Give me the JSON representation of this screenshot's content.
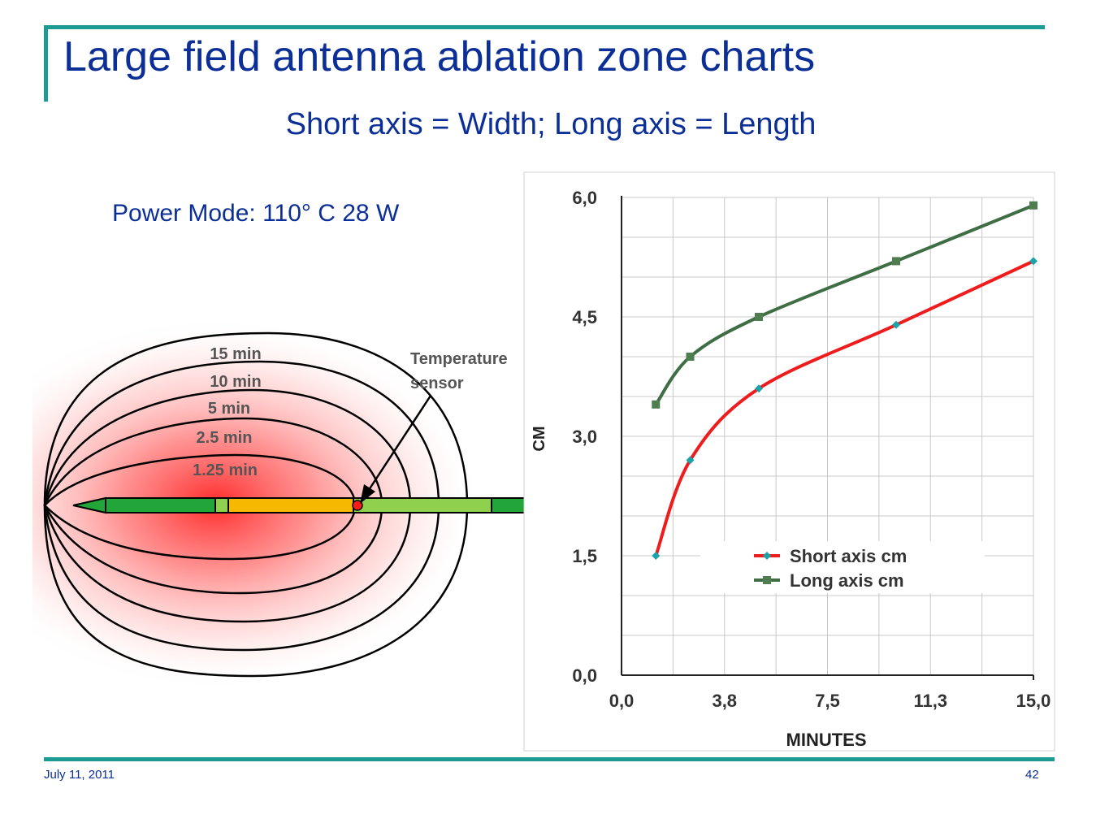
{
  "slide": {
    "title": "Large field antenna ablation zone charts",
    "subtitle": "Short axis = Width; Long axis = Length",
    "power_mode": "Power Mode: 110° C  28 W",
    "footer_date": "July 11, 2011",
    "page_number": "42",
    "accent_color": "#1e9a95",
    "title_color": "#0b2f96"
  },
  "diagram": {
    "zone_labels": [
      "15 min",
      "10 min",
      "5 min",
      "2.5 min",
      "1.25 min"
    ],
    "sensor_label_line1": "Temperature",
    "sensor_label_line2": "sensor"
  },
  "chart_data": {
    "type": "line",
    "title": "",
    "xlabel": "MINUTES",
    "ylabel": "CM",
    "xlim": [
      0,
      15
    ],
    "ylim": [
      0,
      6
    ],
    "x_ticks": [
      "0,0",
      "3,8",
      "7,5",
      "11,3",
      "15,0"
    ],
    "y_ticks": [
      "0,0",
      "1,5",
      "3,0",
      "4,5",
      "6,0"
    ],
    "grid": true,
    "legend_position": "center-right",
    "series": [
      {
        "name": "Short axis cm",
        "color": "#ee1c1c",
        "marker": "diamond",
        "marker_color": "#1aa3a8",
        "x": [
          1.25,
          2.5,
          5,
          10,
          15
        ],
        "y": [
          1.5,
          2.7,
          3.6,
          4.4,
          5.2
        ]
      },
      {
        "name": "Long axis cm",
        "color": "#3f6e45",
        "marker": "square",
        "marker_color": "#4f7d4f",
        "x": [
          1.25,
          2.5,
          5,
          10,
          15
        ],
        "y": [
          3.4,
          4.0,
          4.5,
          5.2,
          5.9
        ]
      }
    ]
  }
}
